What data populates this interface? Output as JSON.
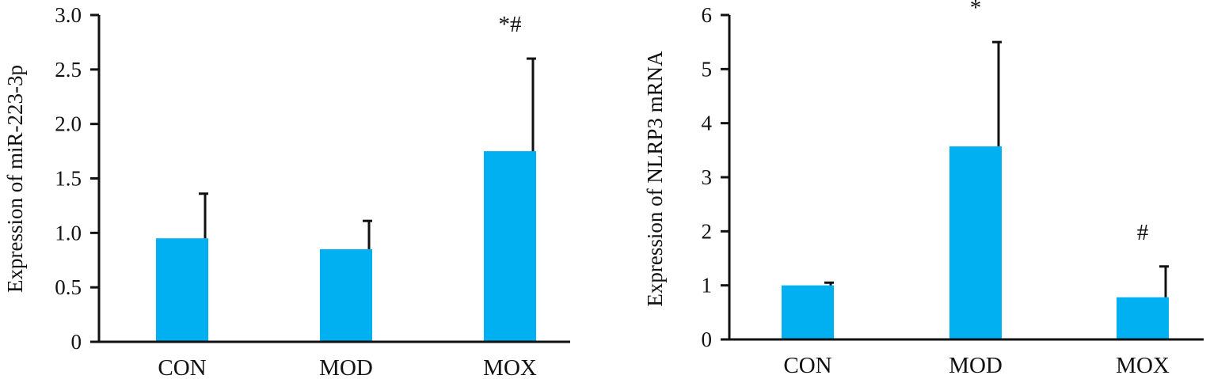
{
  "colors": {
    "bar": "#00B0F0",
    "axis": "#111111"
  },
  "chart_data": [
    {
      "type": "bar",
      "title": "",
      "xlabel": "",
      "ylabel": "Expression of miR-223-3p",
      "categories": [
        "CON",
        "MOD",
        "MOX"
      ],
      "values": [
        0.95,
        0.85,
        1.75
      ],
      "error_upper": [
        1.36,
        1.11,
        2.6
      ],
      "annotations": [
        "",
        "",
        "*#"
      ],
      "ylim": [
        0,
        3.0
      ],
      "yticks": [
        0,
        0.5,
        1.0,
        1.5,
        2.0,
        2.5,
        3.0
      ],
      "ytick_labels": [
        "0",
        "0.5",
        "1.0",
        "1.5",
        "2.0",
        "2.5",
        "3.0"
      ],
      "grid": false
    },
    {
      "type": "bar",
      "title": "",
      "xlabel": "",
      "ylabel": "Expression of NLRP3 mRNA",
      "categories": [
        "CON",
        "MOD",
        "MOX"
      ],
      "values": [
        1.0,
        3.57,
        0.78
      ],
      "error_upper": [
        1.05,
        5.5,
        1.35
      ],
      "annotations": [
        "",
        "*",
        "#"
      ],
      "ylim": [
        0,
        6
      ],
      "yticks": [
        0,
        1,
        2,
        3,
        4,
        5,
        6
      ],
      "ytick_labels": [
        "0",
        "1",
        "2",
        "3",
        "4",
        "5",
        "6"
      ],
      "grid": false
    }
  ]
}
